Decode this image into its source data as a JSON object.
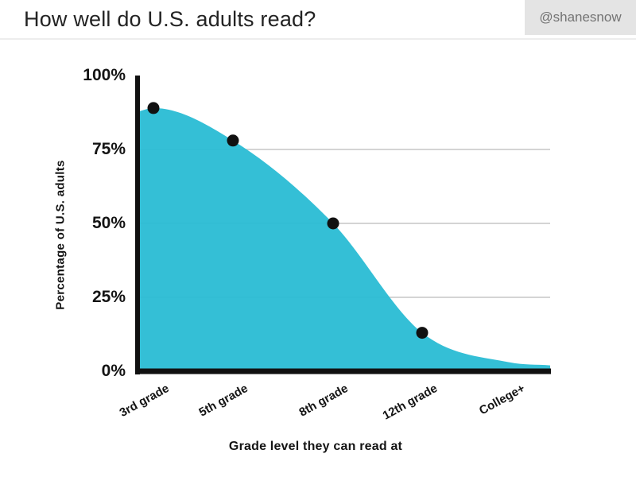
{
  "header": {
    "title": "How well do U.S. adults read?",
    "badge": "@shanesnow"
  },
  "chart_data": {
    "type": "area",
    "title": "How well do U.S. adults read?",
    "categories": [
      "3rd grade",
      "5th grade",
      "8th grade",
      "12th grade",
      "College+"
    ],
    "values": [
      89,
      78,
      50,
      13,
      3
    ],
    "markers": [
      true,
      true,
      true,
      true,
      false
    ],
    "xlabel": "Grade level they can read at",
    "ylabel": "Percentage of U.S. adults",
    "ylim": [
      0,
      100
    ],
    "yticks": [
      {
        "value": 0,
        "label": "0%"
      },
      {
        "value": 25,
        "label": "25%"
      },
      {
        "value": 50,
        "label": "50%"
      },
      {
        "value": 75,
        "label": "75%"
      },
      {
        "value": 100,
        "label": "100%"
      }
    ],
    "grid": "horizontal gridlines at 25, 50, 75 only",
    "legend": "none",
    "colors": {
      "area": "#29bcd4",
      "marker": "#111111",
      "axis": "#111111",
      "gridline": "#c6c6c6",
      "text": "#141414"
    }
  }
}
